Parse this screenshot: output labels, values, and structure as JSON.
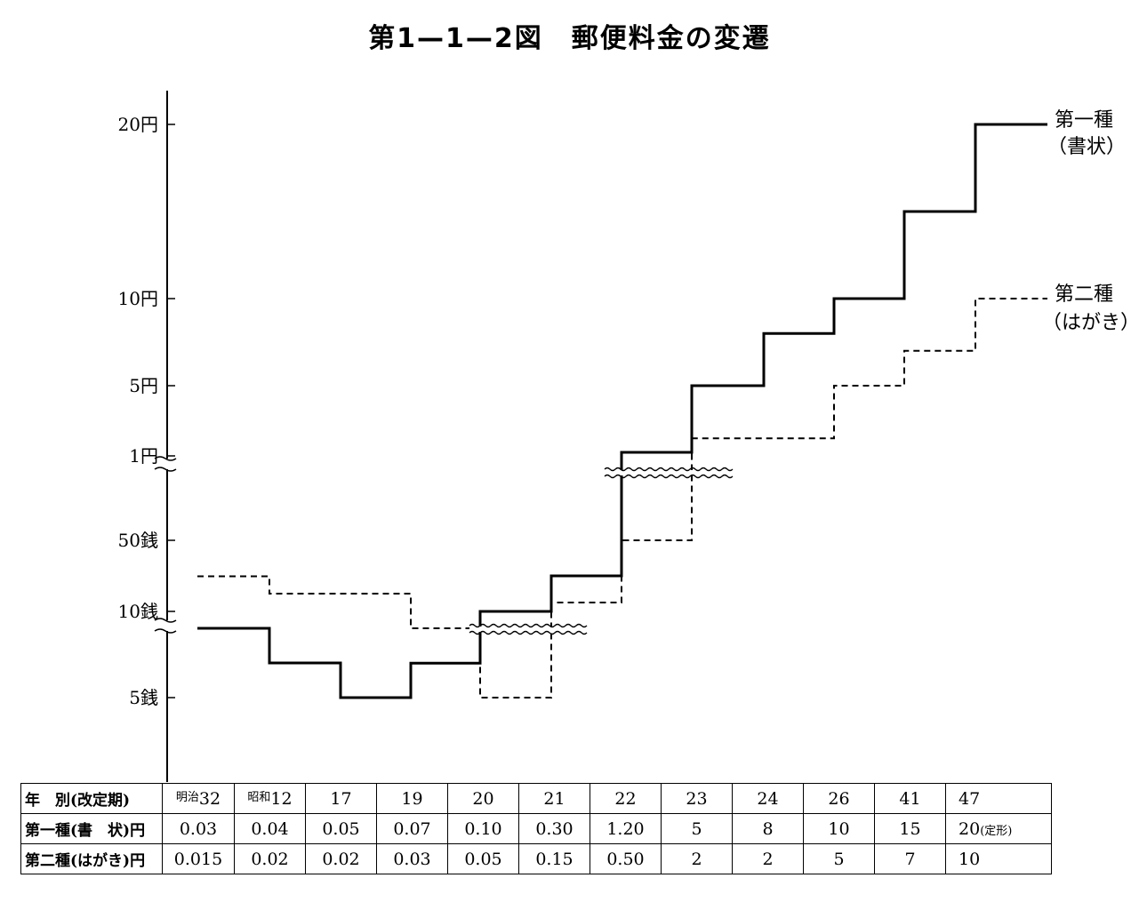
{
  "title": "第1—1—2図　郵便料金の変遷",
  "chart_data": {
    "type": "step-line",
    "title": "第1—1—2図　郵便料金の変遷",
    "y_axis_labels": [
      "20円",
      "10円",
      "5円",
      "1円",
      "50銭",
      "10銭",
      "5銭"
    ],
    "y_axis_scale": "piecewise with breaks between 10銭–1円 and above 1円",
    "categories": [
      "32",
      "12",
      "17",
      "19",
      "20",
      "21",
      "22",
      "23",
      "24",
      "26",
      "41",
      "47"
    ],
    "series": [
      {
        "name": "第一種（書状）",
        "line_style": "solid",
        "values": [
          0.03,
          0.04,
          0.05,
          0.07,
          0.1,
          0.3,
          1.2,
          5,
          8,
          10,
          15,
          20
        ]
      },
      {
        "name": "第二種（はがき）",
        "line_style": "dashed",
        "values": [
          0.015,
          0.02,
          0.02,
          0.03,
          0.05,
          0.15,
          0.5,
          2,
          2,
          5,
          7,
          10
        ]
      }
    ]
  },
  "legend": {
    "first_line1": "第一種",
    "first_line2": "（書状）",
    "second_line1": "第二種",
    "second_line2": "（はがき）"
  },
  "table": {
    "header_label": "年　別(改定期)",
    "era_meiji": "明治",
    "era_showa": "昭和",
    "years": [
      "32",
      "12",
      "17",
      "19",
      "20",
      "21",
      "22",
      "23",
      "24",
      "26",
      "41",
      "47"
    ],
    "row1_label": "第一種(書　状)円",
    "row1": [
      "0.03",
      "0.04",
      "0.05",
      "0.07",
      "0.10",
      "0.30",
      "1.20",
      "5",
      "8",
      "10",
      "15",
      "20"
    ],
    "row1_last_note": "(定形)",
    "row2_label": "第二種(はがき)円",
    "row2": [
      "0.015",
      "0.02",
      "0.02",
      "0.03",
      "0.05",
      "0.15",
      "0.50",
      "2",
      "2",
      "5",
      "7",
      "10"
    ]
  }
}
